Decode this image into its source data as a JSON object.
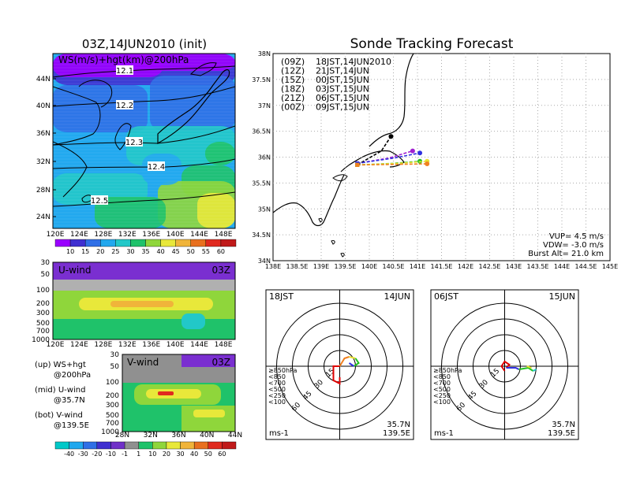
{
  "left": {
    "title": "03Z,14JUN2010 (init)",
    "map_label": "WS(m/s)+hgt(km)@200hPa",
    "lat_ticks": [
      "44N",
      "40N",
      "36N",
      "32N",
      "28N",
      "24N"
    ],
    "lon_ticks": [
      "120E",
      "124E",
      "128E",
      "132E",
      "136E",
      "140E",
      "144E",
      "148E"
    ],
    "contours": [
      "12.1",
      "12.2",
      "12.3",
      "12.4",
      "12.5"
    ],
    "ws_scale": [
      "10",
      "15",
      "20",
      "25",
      "30",
      "35",
      "40",
      "45",
      "50",
      "55",
      "60"
    ],
    "ws_colors": [
      "#9a00ff",
      "#3f2fd0",
      "#2f6fe6",
      "#22a8ee",
      "#22c8c8",
      "#1fc26a",
      "#8fd63b",
      "#e8e83a",
      "#f0b43a",
      "#e8701f",
      "#e02a1f",
      "#c01a1a"
    ],
    "uwind": {
      "label": "U-wind",
      "time": "03Z",
      "levels": [
        "30",
        "50",
        "100",
        "200",
        "300",
        "500",
        "700",
        "1000"
      ],
      "lon_ticks": [
        "120E",
        "124E",
        "128E",
        "132E",
        "136E",
        "140E",
        "144E",
        "148E"
      ]
    },
    "vwind": {
      "label": "V-wind",
      "time": "03Z",
      "levels": [
        "30",
        "50",
        "100",
        "200",
        "300",
        "500",
        "700",
        "1000"
      ],
      "lat_ticks": [
        "28N",
        "32N",
        "36N",
        "40N",
        "44N"
      ]
    },
    "legend_notes": [
      [
        "(up) WS+hgt",
        "@200hPa"
      ],
      [
        "(mid) U-wind",
        "@35.7N"
      ],
      [
        "(bot) V-wind",
        "@139.5E"
      ]
    ],
    "wind_scale": [
      "-40",
      "-30",
      "-20",
      "-10",
      "-1",
      "1",
      "10",
      "20",
      "30",
      "40",
      "50",
      "60"
    ],
    "wind_colors": [
      "#00c8c8",
      "#20a8ee",
      "#2f6fe6",
      "#3f2fd0",
      "#7030c8",
      "#909090",
      "#1fc26a",
      "#8fd63b",
      "#e8e83a",
      "#f0b43a",
      "#e8701f",
      "#e02a1f",
      "#c01a1a"
    ]
  },
  "right": {
    "title": "Sonde Tracking Forecast",
    "lat_ticks": [
      "38N",
      "37.5N",
      "37N",
      "36.5N",
      "36N",
      "35.5N",
      "35N",
      "34.5N",
      "34N"
    ],
    "lon_ticks": [
      "138E",
      "138.5E",
      "139E",
      "139.5E",
      "140E",
      "140.5E",
      "141E",
      "141.5E",
      "142E",
      "142.5E",
      "143E",
      "143.5E",
      "144E",
      "144.5E",
      "145E"
    ],
    "legend": [
      {
        "z": "(09Z)",
        "jst": "18JST,14JUN2010",
        "color": "#000000"
      },
      {
        "z": "(12Z)",
        "jst": "21JST,14JUN",
        "color": "#a020d0"
      },
      {
        "z": "(15Z)",
        "jst": "00JST,15JUN",
        "color": "#3030e0"
      },
      {
        "z": "(18Z)",
        "jst": "03JST,15JUN",
        "color": "#20c020"
      },
      {
        "z": "(21Z)",
        "jst": "06JST,15JUN",
        "color": "#e8e030"
      },
      {
        "z": "(00Z)",
        "jst": "09JST,15JUN",
        "color": "#f08020"
      }
    ],
    "params": [
      "VUP= 4.5 m/s",
      "VDW= -3.0 m/s",
      "Burst Alt= 21.0 km"
    ],
    "hodo1": {
      "time": "18JST",
      "date": "14JUN"
    },
    "hodo2": {
      "time": "06JST",
      "date": "15JUN"
    },
    "hodo_levels": [
      {
        "label": "≥850hPa",
        "color": "#e00000"
      },
      {
        "label": "<850",
        "color": "#f08020"
      },
      {
        "label": "<700",
        "color": "#e8e030"
      },
      {
        "label": "<500",
        "color": "#20c020"
      },
      {
        "label": "<250",
        "color": "#20c8c8"
      },
      {
        "label": "<100",
        "color": "#3030e0"
      }
    ],
    "hodo_rings": [
      "15",
      "30",
      "45",
      "60"
    ],
    "hodo_loc": [
      "35.7N",
      "139.5E"
    ],
    "hodo_unit": "ms-1"
  },
  "chart_data": [
    {
      "type": "heatmap",
      "title": "03Z,14JUN2010 (init)",
      "label": "WS(m/s)+hgt(km)@200hPa",
      "contours_km": [
        12.1,
        12.2,
        12.3,
        12.4,
        12.5
      ],
      "xlim": [
        "120E",
        "148E"
      ],
      "ylim": [
        "24N",
        "46N"
      ]
    },
    {
      "type": "heatmap",
      "label": "U-wind",
      "ylim_hPa": [
        1000,
        30
      ],
      "xlim": [
        "120E",
        "148E"
      ]
    },
    {
      "type": "heatmap",
      "label": "V-wind",
      "ylim_hPa": [
        1000,
        30
      ],
      "xlim": [
        "28N",
        "44N"
      ]
    },
    {
      "type": "line",
      "title": "Sonde Tracking Forecast",
      "xlim": [
        138,
        145
      ],
      "ylim": [
        34,
        38
      ],
      "series": [
        {
          "name": "(09Z) 18JST,14JUN2010",
          "x": [
            139.75,
            140.25,
            140.45
          ],
          "y": [
            35.85,
            36.12,
            36.4
          ]
        },
        {
          "name": "(12Z) 21JST,14JUN",
          "x": [
            139.75,
            140.4,
            140.9
          ],
          "y": [
            35.88,
            35.98,
            36.12
          ]
        },
        {
          "name": "(15Z) 00JST,15JUN",
          "x": [
            139.75,
            140.5,
            141.05
          ],
          "y": [
            35.88,
            35.98,
            36.08
          ]
        },
        {
          "name": "(18Z) 03JST,15JUN",
          "x": [
            139.75,
            140.5,
            141.05
          ],
          "y": [
            35.85,
            35.88,
            35.92
          ]
        },
        {
          "name": "(21Z) 06JST,15JUN",
          "x": [
            139.75,
            140.6,
            141.2
          ],
          "y": [
            35.85,
            35.88,
            35.92
          ]
        },
        {
          "name": "(00Z) 09JST,15JUN",
          "x": [
            139.75,
            140.6,
            141.2
          ],
          "y": [
            35.85,
            35.86,
            35.87
          ]
        }
      ]
    }
  ]
}
